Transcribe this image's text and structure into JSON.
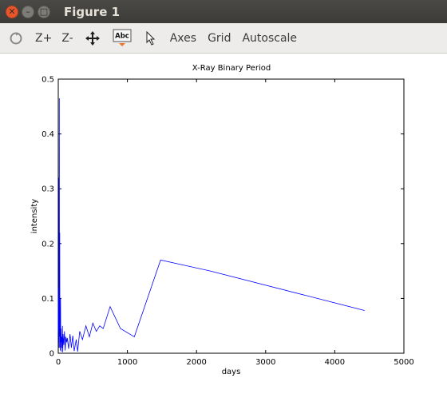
{
  "window": {
    "title": "Figure 1"
  },
  "toolbar": {
    "zoom_in_label": "Z+",
    "zoom_out_label": "Z-",
    "axes_label": "Axes",
    "grid_label": "Grid",
    "autoscale_label": "Autoscale",
    "text_tool_glyph": "Abc"
  },
  "chart_data": {
    "type": "line",
    "title": "X-Ray Binary Period",
    "xlabel": "days",
    "ylabel": "intensity",
    "xlim": [
      0,
      5000
    ],
    "ylim": [
      0,
      0.5
    ],
    "x_ticks": [
      0,
      1000,
      2000,
      3000,
      4000,
      5000
    ],
    "y_ticks": [
      0,
      0.1,
      0.2,
      0.3,
      0.4,
      0.5
    ],
    "x_tick_labels": [
      "0",
      "1000",
      "2000",
      "3000",
      "4000",
      "5000"
    ],
    "y_tick_labels": [
      "0",
      "0.1",
      "0.2",
      "0.3",
      "0.4",
      "0.5"
    ],
    "grid": false,
    "color": "#0000ff",
    "series": [
      {
        "x": [
          0,
          3,
          6,
          9,
          12,
          15,
          18,
          21,
          24,
          27,
          30,
          33,
          36,
          40,
          45,
          50,
          55,
          60,
          65,
          70,
          80,
          90,
          100,
          110,
          120,
          130,
          150,
          170,
          190,
          210,
          230,
          260,
          280,
          310,
          350,
          400,
          450,
          500,
          550,
          600,
          650,
          750,
          900,
          1100,
          1480,
          2200,
          4430
        ],
        "y": [
          0.04,
          0.12,
          0.02,
          0.32,
          0.01,
          0.465,
          0.03,
          0.22,
          0.01,
          0.07,
          0.005,
          0.1,
          0.02,
          0.045,
          0.003,
          0.03,
          0.01,
          0.05,
          0.002,
          0.035,
          0.015,
          0.04,
          0.005,
          0.03,
          0.02,
          0.028,
          0.008,
          0.035,
          0.01,
          0.032,
          0.004,
          0.025,
          0.003,
          0.04,
          0.025,
          0.05,
          0.03,
          0.055,
          0.04,
          0.05,
          0.045,
          0.085,
          0.045,
          0.03,
          0.17,
          0.15,
          0.078
        ]
      }
    ]
  }
}
